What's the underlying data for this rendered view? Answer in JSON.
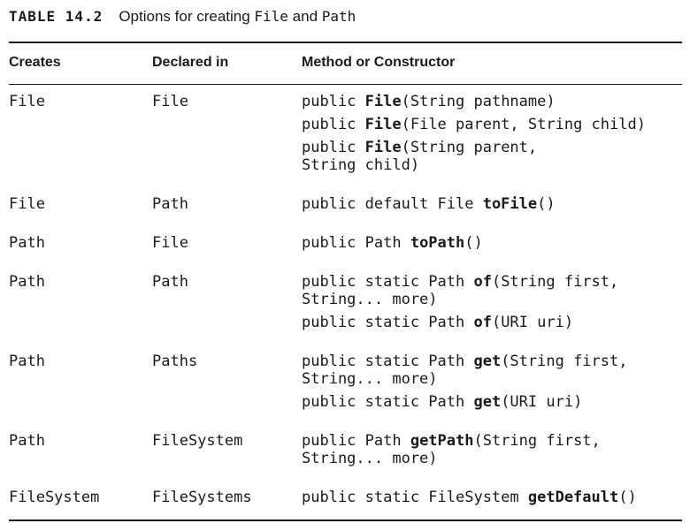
{
  "caption": {
    "label": "TABLE 14.2",
    "text_before": "Options for creating ",
    "file_word": "File",
    "text_middle": " and ",
    "path_word": "Path"
  },
  "headers": {
    "creates": "Creates",
    "declared_in": "Declared in",
    "method": "Method or Constructor"
  },
  "rows": [
    {
      "creates": "File",
      "declared_in": "File",
      "methods": [
        {
          "lines": [
            {
              "pre": "public ",
              "bold": "File",
              "post": "(String pathname)"
            }
          ]
        },
        {
          "lines": [
            {
              "pre": "public ",
              "bold": "File",
              "post": "(File parent, String child)"
            }
          ]
        },
        {
          "lines": [
            {
              "pre": "public ",
              "bold": "File",
              "post": "(String parent,"
            },
            {
              "pre": "String child)",
              "bold": "",
              "post": ""
            }
          ]
        }
      ]
    },
    {
      "creates": "File",
      "declared_in": "Path",
      "methods": [
        {
          "lines": [
            {
              "pre": "public default File ",
              "bold": "toFile",
              "post": "()"
            }
          ]
        }
      ]
    },
    {
      "creates": "Path",
      "declared_in": "File",
      "methods": [
        {
          "lines": [
            {
              "pre": "public Path ",
              "bold": "toPath",
              "post": "()"
            }
          ]
        }
      ]
    },
    {
      "creates": "Path",
      "declared_in": "Path",
      "methods": [
        {
          "lines": [
            {
              "pre": "public static Path ",
              "bold": "of",
              "post": "(String first,"
            },
            {
              "pre": "String... more)",
              "bold": "",
              "post": ""
            }
          ]
        },
        {
          "lines": [
            {
              "pre": "public static Path ",
              "bold": "of",
              "post": "(URI uri)"
            }
          ]
        }
      ]
    },
    {
      "creates": "Path",
      "declared_in": "Paths",
      "methods": [
        {
          "lines": [
            {
              "pre": "public static Path ",
              "bold": "get",
              "post": "(String first,"
            },
            {
              "pre": "String... more)",
              "bold": "",
              "post": ""
            }
          ]
        },
        {
          "lines": [
            {
              "pre": "public static Path ",
              "bold": "get",
              "post": "(URI uri)"
            }
          ]
        }
      ]
    },
    {
      "creates": "Path",
      "declared_in": "FileSystem",
      "methods": [
        {
          "lines": [
            {
              "pre": "public Path ",
              "bold": "getPath",
              "post": "(String first,"
            },
            {
              "pre": "String... more)",
              "bold": "",
              "post": ""
            }
          ]
        }
      ]
    },
    {
      "creates": "FileSystem",
      "declared_in": "FileSystems",
      "methods": [
        {
          "lines": [
            {
              "pre": "public static FileSystem ",
              "bold": "getDefault",
              "post": "()"
            }
          ]
        }
      ]
    }
  ]
}
